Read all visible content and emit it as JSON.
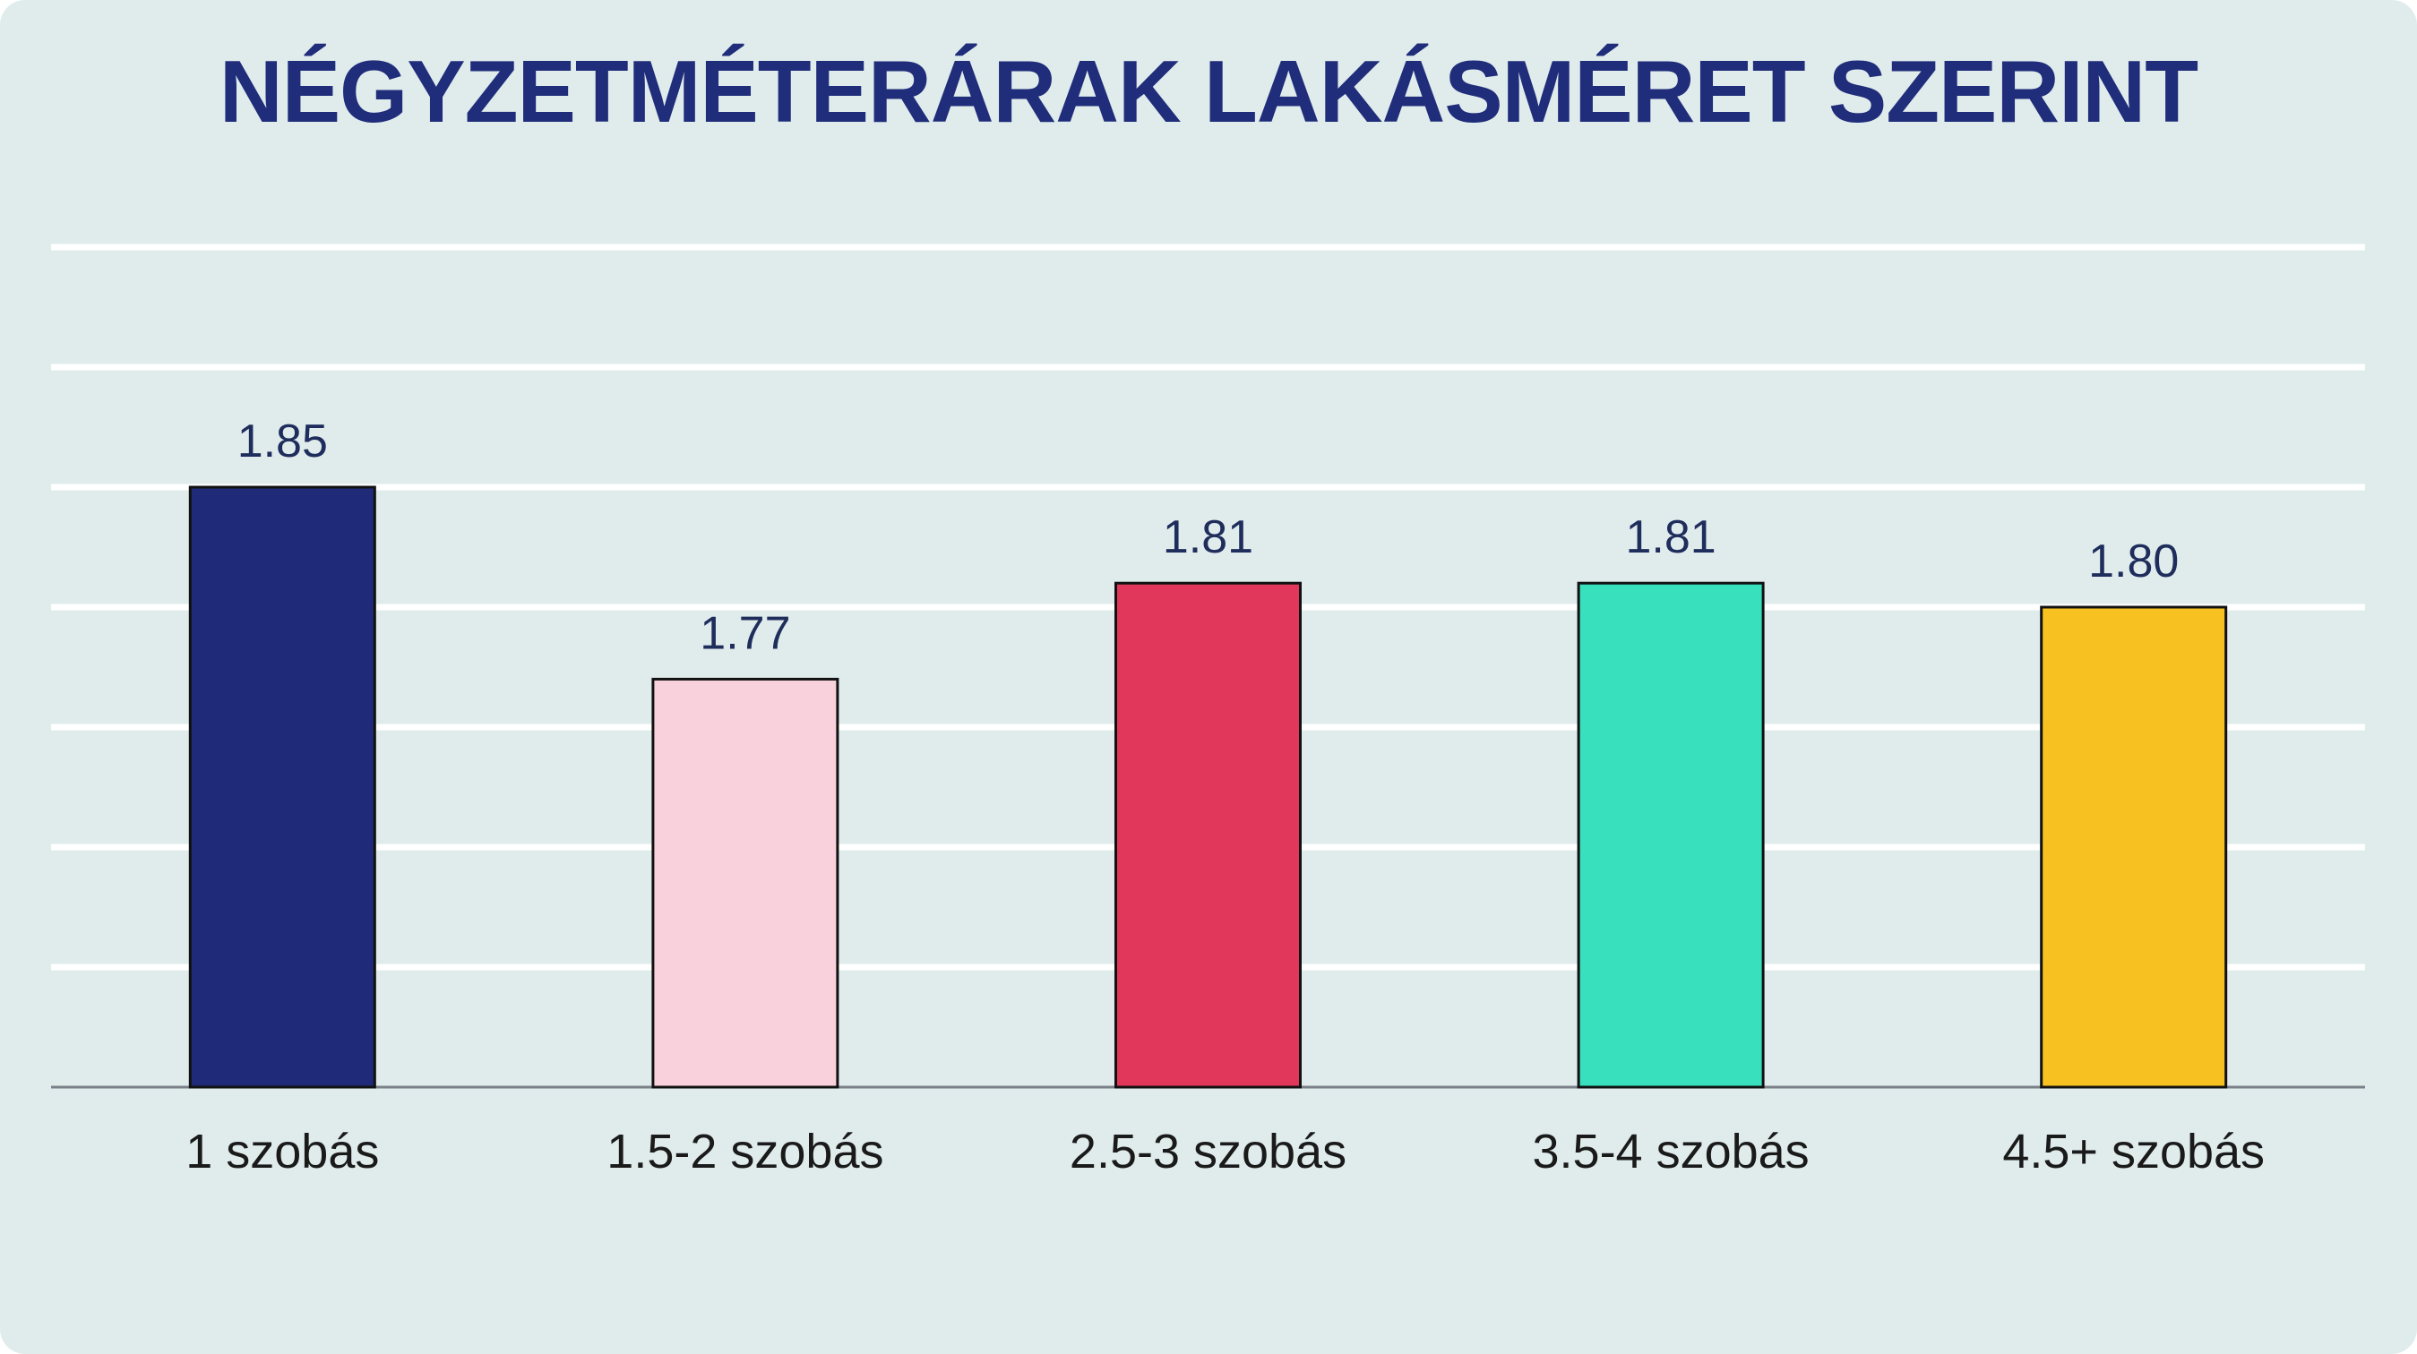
{
  "chart_data": {
    "type": "bar",
    "title": "NÉGYZETMÉTERÁRAK LAKÁSMÉRET SZERINT",
    "xlabel": "",
    "ylabel": "",
    "categories": [
      "1 szobás",
      "1.5-2 szobás",
      "2.5-3 szobás",
      "3.5-4 szobás",
      "4.5+ szobás"
    ],
    "values": [
      1.85,
      1.77,
      1.81,
      1.81,
      1.8
    ],
    "value_labels": [
      "1.85",
      "1.77",
      "1.81",
      "1.81",
      "1.80"
    ],
    "colors": [
      "#1f2b78",
      "#f9d1dc",
      "#e0375a",
      "#38e0be",
      "#f7c122"
    ],
    "ylim": [
      1.6,
      1.7
    ],
    "grid": true,
    "legend": "none",
    "background": "#e0ecec",
    "title_color": "#1f2d7a"
  }
}
